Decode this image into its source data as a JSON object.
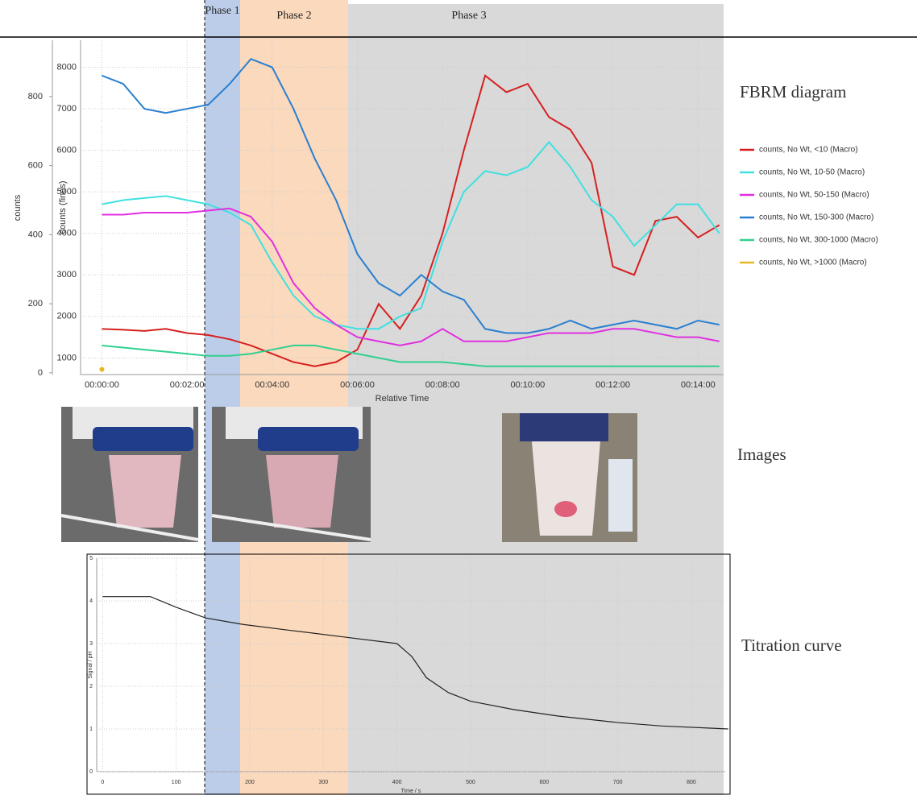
{
  "phases": [
    "Phase 1",
    "Phase 2",
    "Phase 3"
  ],
  "images_label": "Images",
  "chart_data": [
    {
      "type": "line",
      "title": "FBRM diagram",
      "x_label": "Relative Time",
      "y_label": "counts (fines)",
      "y2_label": "counts",
      "x": [
        0,
        0.5,
        1,
        1.5,
        2,
        2.5,
        3,
        3.5,
        4,
        4.5,
        5,
        5.5,
        6,
        6.5,
        7,
        7.5,
        8,
        8.5,
        9,
        9.5,
        10,
        10.5,
        11,
        11.5,
        12,
        12.5,
        13,
        13.5,
        14,
        14.5
      ],
      "xlim": [
        -0.5,
        14.6
      ],
      "xticks": [
        {
          "value": 0,
          "label": "00:00:00"
        },
        {
          "value": 2,
          "label": "00:02:00"
        },
        {
          "value": 4,
          "label": "00:04:00"
        },
        {
          "value": 6,
          "label": "00:06:00"
        },
        {
          "value": 8,
          "label": "00:08:00"
        },
        {
          "value": 10,
          "label": "00:10:00"
        },
        {
          "value": 12,
          "label": "00:12:00"
        },
        {
          "value": 14,
          "label": "00:14:00"
        }
      ],
      "ylim": [
        600,
        8650
      ],
      "yticks": [
        1000,
        2000,
        3000,
        4000,
        5000,
        6000,
        7000,
        8000
      ],
      "y2lim": [
        -5,
        963
      ],
      "y2ticks": [
        0,
        200,
        400,
        600,
        800
      ],
      "grid": true,
      "series": [
        {
          "name": "counts, No Wt, <10 (Macro)",
          "color": "#d62020",
          "values": [
            1700,
            1680,
            1650,
            1700,
            1600,
            1550,
            1450,
            1300,
            1100,
            900,
            800,
            900,
            1200,
            2300,
            1700,
            2500,
            4000,
            6000,
            7800,
            7400,
            7600,
            6800,
            6500,
            5700,
            3200,
            3000,
            4300,
            4400,
            3900,
            4200
          ]
        },
        {
          "name": "counts, No Wt, 10-50 (Macro)",
          "color": "#40e0e0",
          "values": [
            4700,
            4800,
            4850,
            4900,
            4800,
            4700,
            4500,
            4200,
            3300,
            2500,
            2000,
            1800,
            1700,
            1700,
            2000,
            2200,
            3800,
            5000,
            5500,
            5400,
            5600,
            6200,
            5600,
            4800,
            4400,
            3700,
            4200,
            4700,
            4700,
            4000
          ]
        },
        {
          "name": "counts, No Wt, 50-150 (Macro)",
          "color": "#e030e0",
          "values": [
            4450,
            4450,
            4500,
            4500,
            4500,
            4550,
            4600,
            4400,
            3800,
            2800,
            2200,
            1800,
            1500,
            1400,
            1300,
            1400,
            1700,
            1400,
            1400,
            1400,
            1500,
            1600,
            1600,
            1600,
            1700,
            1700,
            1600,
            1500,
            1500,
            1400
          ]
        },
        {
          "name": "counts, No Wt, 150-300 (Macro)",
          "color": "#2a7fd0",
          "values": [
            7800,
            7600,
            7000,
            6900,
            7000,
            7100,
            7600,
            8200,
            8000,
            7000,
            5800,
            4800,
            3500,
            2800,
            2500,
            3000,
            2600,
            2400,
            1700,
            1600,
            1600,
            1700,
            1900,
            1700,
            1800,
            1900,
            1800,
            1700,
            1900,
            1800
          ]
        },
        {
          "name": "counts, No Wt, 300-1000 (Macro)",
          "color": "#30d090",
          "values": [
            1300,
            1250,
            1200,
            1150,
            1100,
            1050,
            1050,
            1100,
            1200,
            1300,
            1300,
            1200,
            1100,
            1000,
            900,
            900,
            900,
            850,
            800,
            800,
            800,
            800,
            800,
            800,
            800,
            800,
            800,
            800,
            800,
            800
          ]
        },
        {
          "name": "counts, No Wt, >1000 (Macro)",
          "color": "#e8b820",
          "axis": "y2",
          "values": [
            10,
            null,
            null,
            null,
            null,
            null,
            null,
            null,
            null,
            null,
            null,
            null,
            null,
            null,
            null,
            null,
            null,
            null,
            null,
            null,
            null,
            null,
            null,
            null,
            null,
            null,
            null,
            null,
            null,
            null
          ]
        }
      ]
    },
    {
      "type": "line",
      "title": "Titration curve",
      "x_label": "Time / s",
      "y_label": "Signal / pH",
      "x": [
        0,
        65,
        100,
        140,
        190,
        250,
        330,
        400,
        420,
        440,
        470,
        500,
        560,
        620,
        700,
        760,
        850
      ],
      "xlim": [
        -8,
        846
      ],
      "xticks": [
        0,
        100,
        200,
        300,
        400,
        500,
        600,
        700,
        800
      ],
      "ylim": [
        0,
        5
      ],
      "yticks": [
        0,
        1,
        2,
        3,
        4,
        5
      ],
      "grid": true,
      "series": [
        {
          "color": "#222222",
          "values": [
            4.1,
            4.1,
            3.85,
            3.6,
            3.45,
            3.32,
            3.15,
            3.0,
            2.7,
            2.2,
            1.85,
            1.65,
            1.45,
            1.3,
            1.15,
            1.07,
            1.0
          ]
        }
      ]
    }
  ]
}
